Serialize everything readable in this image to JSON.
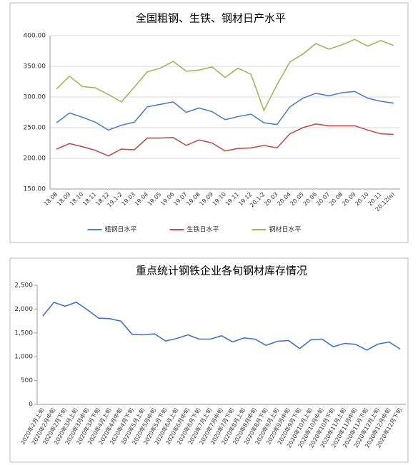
{
  "chart_data": [
    {
      "type": "line",
      "title": "全国粗钢、生铁、钢材日产水平",
      "categories": [
        "18.08",
        "18.09",
        "18.10",
        "18.11",
        "18.12",
        "19.1-2",
        "19.03",
        "19.04",
        "19.05",
        "19.06",
        "19.07",
        "19.08",
        "19.09",
        "19.10",
        "19.11",
        "19.12",
        "20.1-2",
        "20.03",
        "20.04",
        "20.05",
        "20.06",
        "20.07",
        "20.08",
        "20.09",
        "20.10",
        "20.11",
        "20.12(e)"
      ],
      "series": [
        {
          "name": "粗钢日水平",
          "color": "#4f81bd",
          "values": [
            258,
            274,
            267,
            259,
            246,
            254,
            259,
            284,
            288,
            292,
            275,
            282,
            276,
            263,
            268,
            272,
            258,
            255,
            284,
            298,
            306,
            302,
            307,
            309,
            298,
            293,
            290
          ]
        },
        {
          "name": "生铁日水平",
          "color": "#c0504d",
          "values": [
            215,
            224,
            219,
            213,
            204,
            215,
            214,
            233,
            233,
            234,
            221,
            230,
            225,
            212,
            216,
            217,
            221,
            217,
            240,
            250,
            256,
            253,
            253,
            253,
            246,
            240,
            239
          ]
        },
        {
          "name": "钢材日水平",
          "color": "#9bbb59",
          "values": [
            313,
            334,
            317,
            315,
            304,
            292,
            316,
            341,
            347,
            358,
            342,
            344,
            349,
            332,
            347,
            337,
            278,
            320,
            357,
            370,
            387,
            378,
            385,
            394,
            383,
            392,
            384
          ]
        }
      ],
      "ylim": [
        150,
        400
      ],
      "yticks": [
        {
          "value": 150,
          "label": "150.00"
        },
        {
          "value": 200,
          "label": "200.00"
        },
        {
          "value": 250,
          "label": "250.00"
        },
        {
          "value": 300,
          "label": "300.00"
        },
        {
          "value": 350,
          "label": "350.00"
        },
        {
          "value": 400,
          "label": "400.00"
        }
      ],
      "grid": true,
      "legend": "bottom"
    },
    {
      "type": "line",
      "title": "重点统计钢铁企业各旬钢材库存情况",
      "categories": [
        "2020年2月上旬",
        "2020年2月中旬",
        "2020年2月下旬",
        "2020年3月上旬",
        "2020年3月中旬",
        "2020年3月下旬",
        "2020年4月上旬",
        "2020年4月中旬",
        "2020年4月下旬",
        "2020年5月上旬",
        "2020年5月中旬",
        "2020年5月下旬",
        "2020年6月上旬",
        "2020年6月中旬",
        "2020年6月下旬",
        "2020年7月上旬",
        "2020年7月中旬",
        "2020年7月下旬",
        "2020年8月上旬",
        "2020年8月中旬",
        "2020年8月下旬",
        "2020年9月上旬",
        "2020年9月中旬",
        "2020年9月下旬",
        "2020年10月上旬",
        "2020年10月中旬",
        "2020年10月下旬",
        "2020年11月上旬",
        "2020年11月中旬",
        "2020年11月下旬",
        "2020年12月上旬",
        "2020年12月中旬",
        "2020年12月下旬"
      ],
      "values": [
        1855,
        2140,
        2060,
        2145,
        1985,
        1810,
        1800,
        1745,
        1470,
        1460,
        1480,
        1330,
        1385,
        1460,
        1370,
        1370,
        1440,
        1310,
        1395,
        1370,
        1240,
        1325,
        1340,
        1170,
        1355,
        1370,
        1210,
        1280,
        1260,
        1140,
        1265,
        1310,
        1160
      ],
      "color": "#4472c4",
      "ylim": [
        0,
        2500
      ],
      "yticks": [
        0,
        500,
        {
          "value": 1000,
          "label": "1,000"
        },
        {
          "value": 1500,
          "label": "1,500"
        },
        {
          "value": 2000,
          "label": "2,000"
        },
        {
          "value": 2500,
          "label": "2,500"
        }
      ],
      "grid": false
    }
  ]
}
